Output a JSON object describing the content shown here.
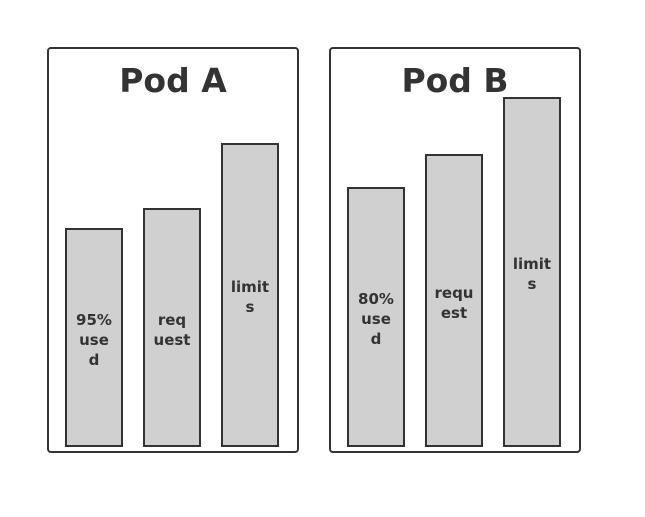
{
  "pods": [
    {
      "title": "Pod A",
      "bars": [
        {
          "label": "95% used",
          "lines": [
            "95%",
            "use",
            "d"
          ],
          "relative_height": 0.72
        },
        {
          "label": "request",
          "lines": [
            "req",
            "uest"
          ],
          "relative_height": 0.785
        },
        {
          "label": "limits",
          "lines": [
            "limit",
            "s"
          ],
          "relative_height": 1.0
        }
      ]
    },
    {
      "title": "Pod B",
      "bars": [
        {
          "label": "80% used",
          "lines": [
            "80%",
            "use",
            "d"
          ],
          "relative_height": 0.742
        },
        {
          "label": "request",
          "lines": [
            "requ",
            "est"
          ],
          "relative_height": 0.838
        },
        {
          "label": "limits",
          "lines": [
            "limit",
            "s"
          ],
          "relative_height": 1.0
        }
      ]
    }
  ],
  "colors": {
    "bar_fill": "#d0d0d0",
    "stroke": "#333333",
    "text": "#333333",
    "background": "#ffffff"
  }
}
